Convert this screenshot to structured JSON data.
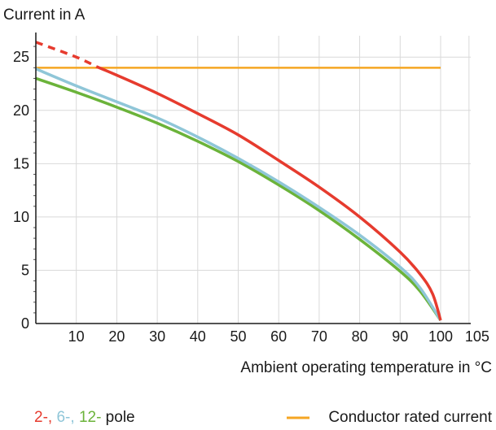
{
  "chart_data": {
    "type": "line",
    "ylabel": "Current in A",
    "xlabel": "Ambient operating temperature in °C",
    "xlim": [
      0,
      105
    ],
    "ylim": [
      0,
      27
    ],
    "x_ticks": [
      10,
      20,
      30,
      40,
      50,
      60,
      70,
      80,
      90,
      100,
      105
    ],
    "y_ticks": [
      0,
      5,
      10,
      15,
      20,
      25
    ],
    "grid": true,
    "series": [
      {
        "color": "#e63b2e",
        "dashed_below_x": 15,
        "points": [
          [
            0,
            26.4
          ],
          [
            10,
            25.0
          ],
          [
            15,
            24.1
          ],
          [
            20,
            23.3
          ],
          [
            30,
            21.6
          ],
          [
            40,
            19.7
          ],
          [
            50,
            17.7
          ],
          [
            60,
            15.3
          ],
          [
            70,
            12.8
          ],
          [
            80,
            10.0
          ],
          [
            90,
            6.7
          ],
          [
            95,
            4.6
          ],
          [
            98,
            2.8
          ],
          [
            100,
            0.3
          ]
        ]
      },
      {
        "color": "#8fc6d8",
        "points": [
          [
            0,
            23.9
          ],
          [
            10,
            22.3
          ],
          [
            20,
            20.8
          ],
          [
            30,
            19.3
          ],
          [
            40,
            17.5
          ],
          [
            50,
            15.5
          ],
          [
            60,
            13.3
          ],
          [
            70,
            10.9
          ],
          [
            80,
            8.3
          ],
          [
            90,
            5.3
          ],
          [
            95,
            3.3
          ],
          [
            100,
            0.3
          ]
        ]
      },
      {
        "color": "#6bb33a",
        "points": [
          [
            0,
            23.0
          ],
          [
            10,
            21.7
          ],
          [
            20,
            20.3
          ],
          [
            30,
            18.8
          ],
          [
            40,
            17.1
          ],
          [
            50,
            15.2
          ],
          [
            60,
            13.0
          ],
          [
            70,
            10.6
          ],
          [
            80,
            7.9
          ],
          [
            90,
            4.9
          ],
          [
            95,
            3.0
          ],
          [
            100,
            0.3
          ]
        ]
      },
      {
        "name": "Conductor rated current",
        "color": "#f5a623",
        "points": [
          [
            0,
            24
          ],
          [
            100,
            24
          ]
        ]
      }
    ],
    "legend": {
      "placement": "bottom",
      "pole_parts": [
        {
          "text": "2-",
          "color": "#e63b2e"
        },
        {
          "text": ", ",
          "color": "#e63b2e"
        },
        {
          "text": "6-",
          "color": "#8fc6d8"
        },
        {
          "text": ", ",
          "color": "#8fc6d8"
        },
        {
          "text": "12-",
          "color": "#6bb33a"
        },
        {
          "text": " pole",
          "color": "#1a1a1a"
        }
      ],
      "rated_label": "Conductor rated current",
      "rated_color": "#f5a623"
    }
  }
}
